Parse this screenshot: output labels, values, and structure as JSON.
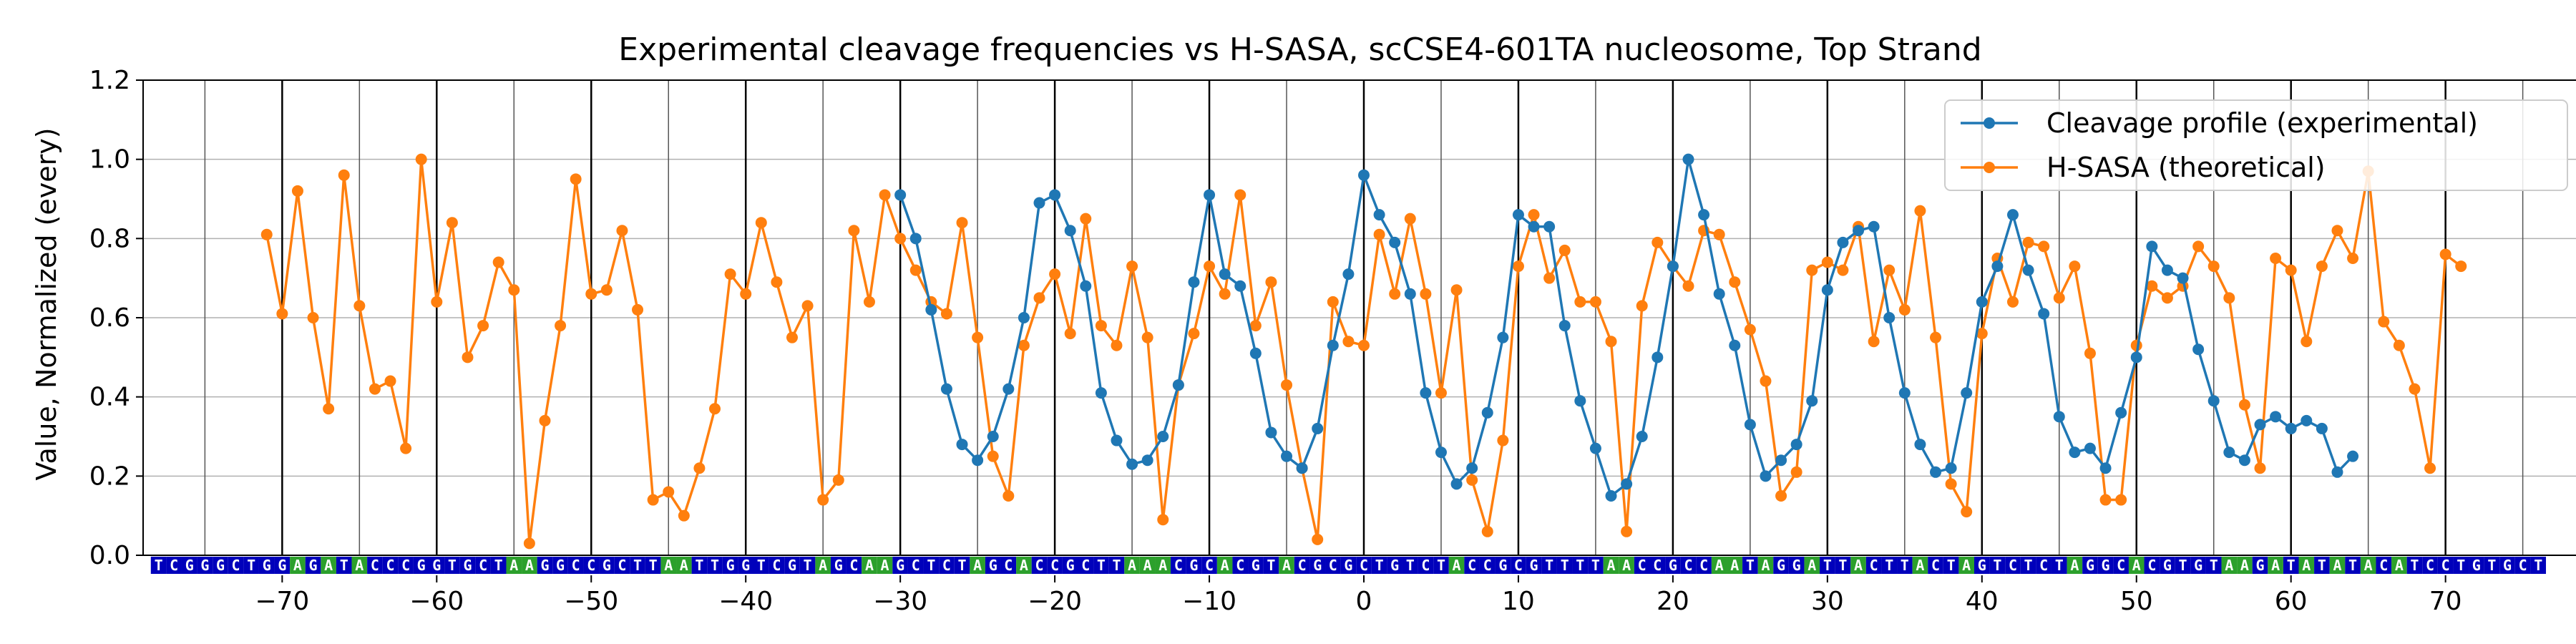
{
  "chart_data": {
    "type": "line",
    "title": "Experimental cleavage frequencies vs H-SASA, scCSE4-601TA nucleosome, Top Strand",
    "xlabel": "",
    "ylabel": "Value, Normalized (every)",
    "xlim": [
      -79,
      79
    ],
    "ylim": [
      0,
      1.2
    ],
    "xticks": [
      -70,
      -60,
      -50,
      -40,
      -30,
      -20,
      -10,
      0,
      10,
      20,
      30,
      40,
      50,
      60,
      70
    ],
    "yticks": [
      0.0,
      0.2,
      0.4,
      0.6,
      0.8,
      1.0,
      1.2
    ],
    "grid": "horizontal and vertical",
    "legend_position": "upper right",
    "sequence": "TCGGGCTGGAGATACCCGGTGCTAAGGCCGCTTAATTGGTCGTAGCAAGCTCTAGCACCGCTTAAACGCACGTACGCGCTGTCTACCGCGTTTTAACCGCCAATAGGATTACTTACTAGTCTCTAGGCACGTGTAAGATATATACATCCTGTGCT",
    "sequence_start": -78,
    "series": [
      {
        "name": "Cleavage profile (experimental)",
        "color": "#1f77b4",
        "x": [
          -30,
          -29,
          -28,
          -27,
          -26,
          -25,
          -24,
          -23,
          -22,
          -21,
          -20,
          -19,
          -18,
          -17,
          -16,
          -15,
          -14,
          -13,
          -12,
          -11,
          -10,
          -9,
          -8,
          -7,
          -6,
          -5,
          -4,
          -3,
          -2,
          -1,
          0,
          1,
          2,
          3,
          4,
          5,
          6,
          7,
          8,
          9,
          10,
          11,
          12,
          13,
          14,
          15,
          16,
          17,
          18,
          19,
          20,
          21,
          22,
          23,
          24,
          25,
          26,
          27,
          28,
          29,
          30,
          31,
          32,
          33,
          34,
          35,
          36,
          37,
          38,
          39,
          40,
          41,
          42,
          43,
          44,
          45,
          46,
          47,
          48,
          49,
          50,
          51,
          52,
          53,
          54,
          55,
          56,
          57,
          58,
          59,
          60,
          61,
          62,
          63,
          64
        ],
        "y": [
          0.91,
          0.8,
          0.62,
          0.42,
          0.28,
          0.24,
          0.3,
          0.42,
          0.6,
          0.89,
          0.91,
          0.82,
          0.68,
          0.41,
          0.29,
          0.23,
          0.24,
          0.3,
          0.43,
          0.69,
          0.91,
          0.71,
          0.68,
          0.51,
          0.31,
          0.25,
          0.22,
          0.32,
          0.53,
          0.71,
          0.96,
          0.86,
          0.79,
          0.66,
          0.41,
          0.26,
          0.18,
          0.22,
          0.36,
          0.55,
          0.86,
          0.83,
          0.83,
          0.58,
          0.39,
          0.27,
          0.15,
          0.18,
          0.3,
          0.5,
          0.73,
          1.0,
          0.86,
          0.66,
          0.53,
          0.33,
          0.2,
          0.24,
          0.28,
          0.39,
          0.67,
          0.79,
          0.82,
          0.83,
          0.6,
          0.41,
          0.28,
          0.21,
          0.22,
          0.41,
          0.64,
          0.73,
          0.86,
          0.72,
          0.61,
          0.35,
          0.26,
          0.27,
          0.22,
          0.36,
          0.5,
          0.78,
          0.72,
          0.7,
          0.52,
          0.39,
          0.26,
          0.24,
          0.33,
          0.35,
          0.32,
          0.34,
          0.32,
          0.21,
          0.25
        ]
      },
      {
        "name": "H-SASA (theoretical)",
        "color": "#ff7f0e",
        "x": [
          -71,
          -70,
          -69,
          -68,
          -67,
          -66,
          -65,
          -64,
          -63,
          -62,
          -61,
          -60,
          -59,
          -58,
          -57,
          -56,
          -55,
          -54,
          -53,
          -52,
          -51,
          -50,
          -49,
          -48,
          -47,
          -46,
          -45,
          -44,
          -43,
          -42,
          -41,
          -40,
          -39,
          -38,
          -37,
          -36,
          -35,
          -34,
          -33,
          -32,
          -31,
          -30,
          -29,
          -28,
          -27,
          -26,
          -25,
          -24,
          -23,
          -22,
          -21,
          -20,
          -19,
          -18,
          -17,
          -16,
          -15,
          -14,
          -13,
          -12,
          -11,
          -10,
          -9,
          -8,
          -7,
          -6,
          -5,
          -4,
          -3,
          -2,
          -1,
          0,
          1,
          2,
          3,
          4,
          5,
          6,
          7,
          8,
          9,
          10,
          11,
          12,
          13,
          14,
          15,
          16,
          17,
          18,
          19,
          20,
          21,
          22,
          23,
          24,
          25,
          26,
          27,
          28,
          29,
          30,
          31,
          32,
          33,
          34,
          35,
          36,
          37,
          38,
          39,
          40,
          41,
          42,
          43,
          44,
          45,
          46,
          47,
          48,
          49,
          50,
          51,
          52,
          53,
          54,
          55,
          56,
          57,
          58,
          59,
          60,
          61,
          62,
          63,
          64,
          65,
          66,
          67,
          68,
          69,
          70,
          71
        ],
        "y": [
          0.81,
          0.61,
          0.92,
          0.6,
          0.37,
          0.96,
          0.63,
          0.42,
          0.44,
          0.27,
          1.0,
          0.64,
          0.84,
          0.5,
          0.58,
          0.74,
          0.67,
          0.03,
          0.34,
          0.58,
          0.95,
          0.66,
          0.67,
          0.82,
          0.62,
          0.14,
          0.16,
          0.1,
          0.22,
          0.37,
          0.71,
          0.66,
          0.84,
          0.69,
          0.55,
          0.63,
          0.14,
          0.19,
          0.82,
          0.64,
          0.91,
          0.8,
          0.72,
          0.64,
          0.61,
          0.84,
          0.55,
          0.25,
          0.15,
          0.53,
          0.65,
          0.71,
          0.56,
          0.85,
          0.58,
          0.53,
          0.73,
          0.55,
          0.09,
          0.43,
          0.56,
          0.73,
          0.66,
          0.91,
          0.58,
          0.69,
          0.43,
          0.22,
          0.04,
          0.64,
          0.54,
          0.53,
          0.81,
          0.66,
          0.85,
          0.66,
          0.41,
          0.67,
          0.19,
          0.06,
          0.29,
          0.73,
          0.86,
          0.7,
          0.77,
          0.64,
          0.64,
          0.54,
          0.06,
          0.63,
          0.79,
          0.73,
          0.68,
          0.82,
          0.81,
          0.69,
          0.57,
          0.44,
          0.15,
          0.21,
          0.72,
          0.74,
          0.72,
          0.83,
          0.54,
          0.72,
          0.62,
          0.87,
          0.55,
          0.18,
          0.11,
          0.56,
          0.75,
          0.64,
          0.79,
          0.78,
          0.65,
          0.73,
          0.51,
          0.14,
          0.14,
          0.53,
          0.68,
          0.65,
          0.68,
          0.78,
          0.73,
          0.65,
          0.38,
          0.22,
          0.75,
          0.72,
          0.54,
          0.73,
          0.82,
          0.75,
          0.97,
          0.59,
          0.53,
          0.42,
          0.22,
          0.76,
          0.73
        ]
      }
    ]
  }
}
